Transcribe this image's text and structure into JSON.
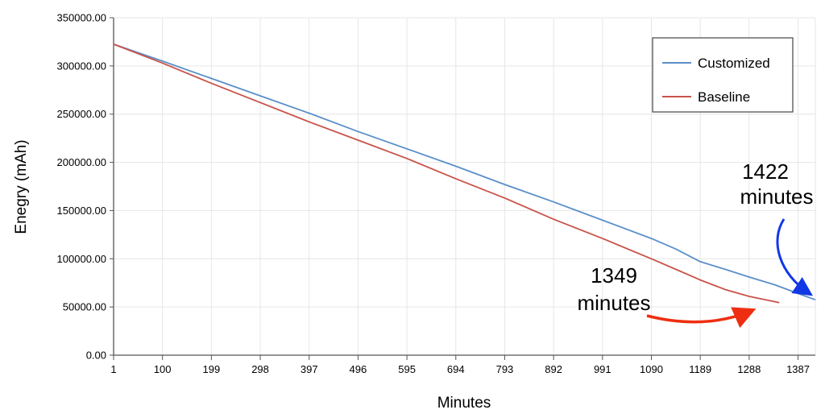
{
  "chart_data": {
    "type": "line",
    "title": "",
    "xlabel": "Minutes",
    "ylabel": "Enegry (mAh)",
    "xlim": [
      1,
      1422
    ],
    "ylim": [
      0,
      350000
    ],
    "x_tick_labels": [
      "1",
      "100",
      "199",
      "298",
      "397",
      "496",
      "595",
      "694",
      "793",
      "892",
      "991",
      "1090",
      "1189",
      "1288",
      "1387"
    ],
    "y_tick_labels": [
      "0.00",
      "50000.00",
      "100000.00",
      "150000.00",
      "200000.00",
      "250000.00",
      "300000.00",
      "350000.00"
    ],
    "grid": true,
    "legend_position": "top-right",
    "series": [
      {
        "name": "Customized",
        "color": "#5b8fc9",
        "x": [
          1,
          100,
          199,
          298,
          397,
          496,
          595,
          694,
          793,
          892,
          991,
          1090,
          1140,
          1189,
          1240,
          1288,
          1340,
          1387,
          1422
        ],
        "y": [
          322500,
          305000,
          287000,
          269000,
          251000,
          232000,
          214000,
          196000,
          177000,
          159000,
          140000,
          121000,
          110000,
          97000,
          89000,
          81000,
          73000,
          64000,
          57500
        ]
      },
      {
        "name": "Baseline",
        "color": "#c9534a",
        "x": [
          1,
          100,
          199,
          298,
          397,
          496,
          595,
          694,
          793,
          892,
          991,
          1090,
          1140,
          1189,
          1240,
          1288,
          1349
        ],
        "y": [
          322500,
          303000,
          282000,
          262000,
          242000,
          223000,
          204000,
          183000,
          163000,
          141000,
          121000,
          100000,
          89000,
          78000,
          68000,
          61000,
          54500
        ]
      }
    ],
    "annotations": [
      {
        "text_line1": "1422",
        "text_line2": "minutes",
        "arrow_color": "#1238e6"
      },
      {
        "text_line1": "1349",
        "text_line2": "minutes",
        "arrow_color": "#ee2e10"
      }
    ]
  }
}
